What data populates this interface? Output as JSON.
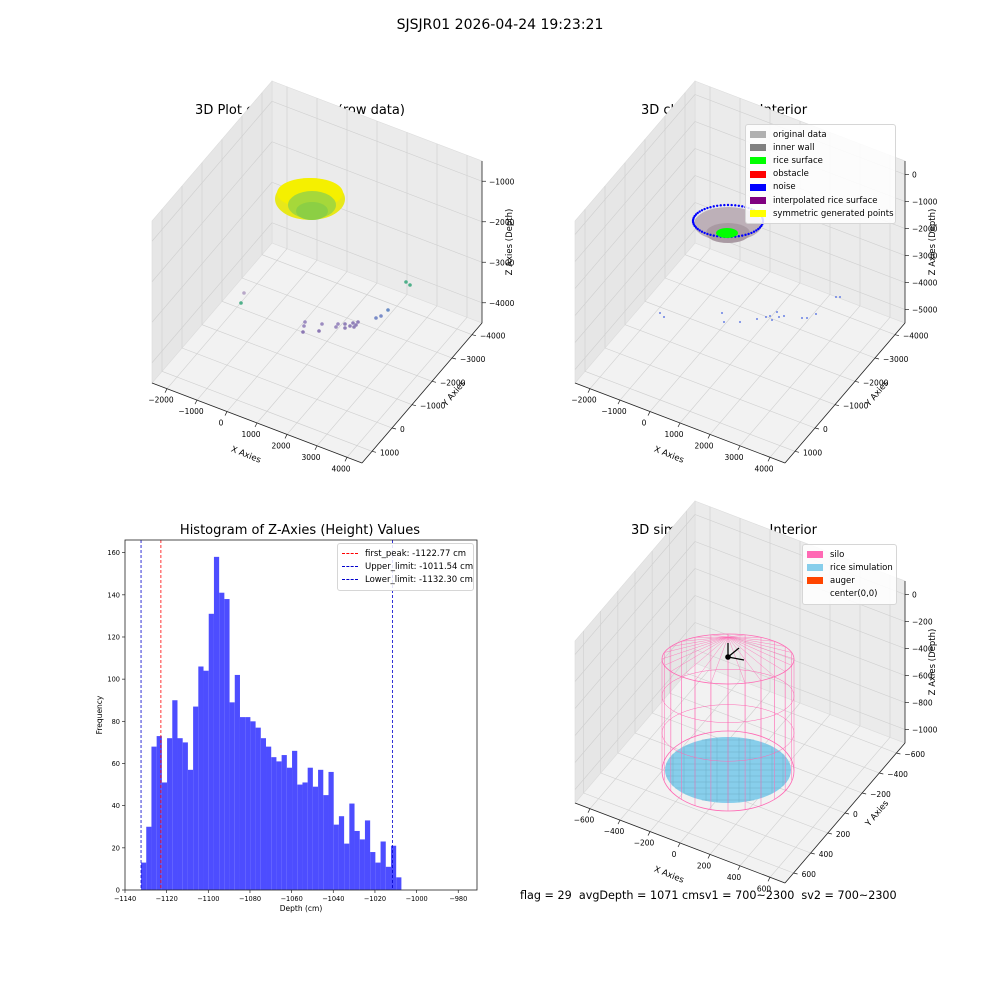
{
  "suptitle": "SJSJR01 2026-04-24 19:23:21",
  "status_text": "flag = 29  avgDepth = 1071 cmsv1 = 700~2300  sv2 = 700~2300",
  "colors": {
    "histogram_bar": "#4d4dff",
    "first_peak_line": "#ff0000",
    "limit_lines": "#0000cc",
    "silo": "#ff69b4",
    "rice": "#87ceeb",
    "auger": "#ff4500"
  },
  "chart_data": [
    {
      "type": "scatter",
      "title": "3D Plot of Silo Interior(row data)",
      "xlabel": "X Axies",
      "ylabel": "Y Axies",
      "zlabel": "Z Axies (Depth)",
      "x_ticks": [
        "−2000",
        "−1000",
        "0",
        "1000",
        "2000",
        "3000",
        "4000"
      ],
      "y_ticks": [
        "1000",
        "0",
        "−1000",
        "−2000",
        "−3000",
        "−4000"
      ],
      "z_ticks": [
        "−1000",
        "−2000",
        "−3000",
        "−4000"
      ],
      "xlim": [
        -2300,
        4200
      ],
      "ylim": [
        -4400,
        1800
      ],
      "zlim": [
        -4600,
        -500
      ],
      "colormap": "viridis"
    },
    {
      "type": "scatter",
      "title": "3D classify of Silo Interior",
      "xlabel": "X Axies",
      "ylabel": "Y Axies",
      "zlabel": "Z Axies (Depth)",
      "x_ticks": [
        "−2000",
        "−1000",
        "0",
        "1000",
        "2000",
        "3000",
        "4000"
      ],
      "y_ticks": [
        "1000",
        "0",
        "−1000",
        "−2000",
        "−3000",
        "−4000"
      ],
      "z_ticks": [
        "0",
        "−1000",
        "−2000",
        "−3000",
        "−4000",
        "−5000"
      ],
      "xlim": [
        -2300,
        4200
      ],
      "ylim": [
        -4400,
        1800
      ],
      "zlim": [
        -5400,
        400
      ],
      "legend": [
        {
          "label": "original data",
          "color": "#b0b0b0"
        },
        {
          "label": "inner wall",
          "color": "#808080"
        },
        {
          "label": "rice surface",
          "color": "#00ff00"
        },
        {
          "label": "obstacle",
          "color": "#ff0000"
        },
        {
          "label": "noise",
          "color": "#0000ff"
        },
        {
          "label": "interpolated rice surface",
          "color": "#800080"
        },
        {
          "label": "symmetric generated points",
          "color": "#ffff00"
        }
      ]
    },
    {
      "type": "bar",
      "title": "Histogram of Z-Axies (Height) Values",
      "xlabel": "Depth (cm)",
      "ylabel": "Frequency",
      "bin_start": -1132.3,
      "bin_width": 2.5,
      "values": [
        13,
        30,
        68,
        73,
        51,
        72,
        90,
        72,
        70,
        57,
        87,
        106,
        104,
        131,
        158,
        141,
        138,
        89,
        102,
        82,
        82,
        80,
        77,
        72,
        68,
        63,
        61,
        64,
        58,
        66,
        50,
        51,
        58,
        49,
        57,
        45,
        56,
        31,
        35,
        22,
        41,
        28,
        24,
        33,
        18,
        13,
        23,
        11,
        21,
        6
      ],
      "xlim": [
        -1140,
        -971
      ],
      "ylim": [
        0,
        166
      ],
      "x_ticks": [
        -1140,
        -1120,
        -1100,
        -1080,
        -1060,
        -1040,
        -1020,
        -1000,
        -980
      ],
      "y_ticks": [
        0,
        20,
        40,
        60,
        80,
        100,
        120,
        140,
        160
      ],
      "vlines": [
        {
          "label": "first_peak: -1122.77 cm",
          "x": -1122.77,
          "color": "#ff0000"
        },
        {
          "label": "Upper_limit: -1011.54 cm",
          "x": -1011.54,
          "color": "#0000cc"
        },
        {
          "label": "Lower_limit: -1132.30 cm",
          "x": -1132.3,
          "color": "#0000cc"
        }
      ],
      "legend_position": "top-right"
    },
    {
      "type": "scatter",
      "title": "3D simulation of Silo Interior",
      "xlabel": "X Axies",
      "ylabel": "Y Axies",
      "zlabel": "Z Axies (Depth)",
      "x_ticks": [
        "−600",
        "−400",
        "−200",
        "0",
        "200",
        "400",
        "600"
      ],
      "y_ticks": [
        "600",
        "400",
        "200",
        "0",
        "−200",
        "−400",
        "−600"
      ],
      "z_ticks": [
        "0",
        "−200",
        "−400",
        "−600",
        "−800",
        "−1000"
      ],
      "xlim": [
        -700,
        700
      ],
      "ylim": [
        -700,
        700
      ],
      "zlim": [
        -1150,
        80
      ],
      "silo_radius": 500,
      "silo_top": 0,
      "silo_bottom": -1071,
      "rice_depth": -1071,
      "legend": [
        {
          "label": "silo",
          "color": "#ff69b4"
        },
        {
          "label": "rice simulation",
          "color": "#87ceeb"
        },
        {
          "label": "auger",
          "color": "#ff4500"
        },
        {
          "label": "center(0,0)",
          "color": ""
        }
      ]
    }
  ]
}
